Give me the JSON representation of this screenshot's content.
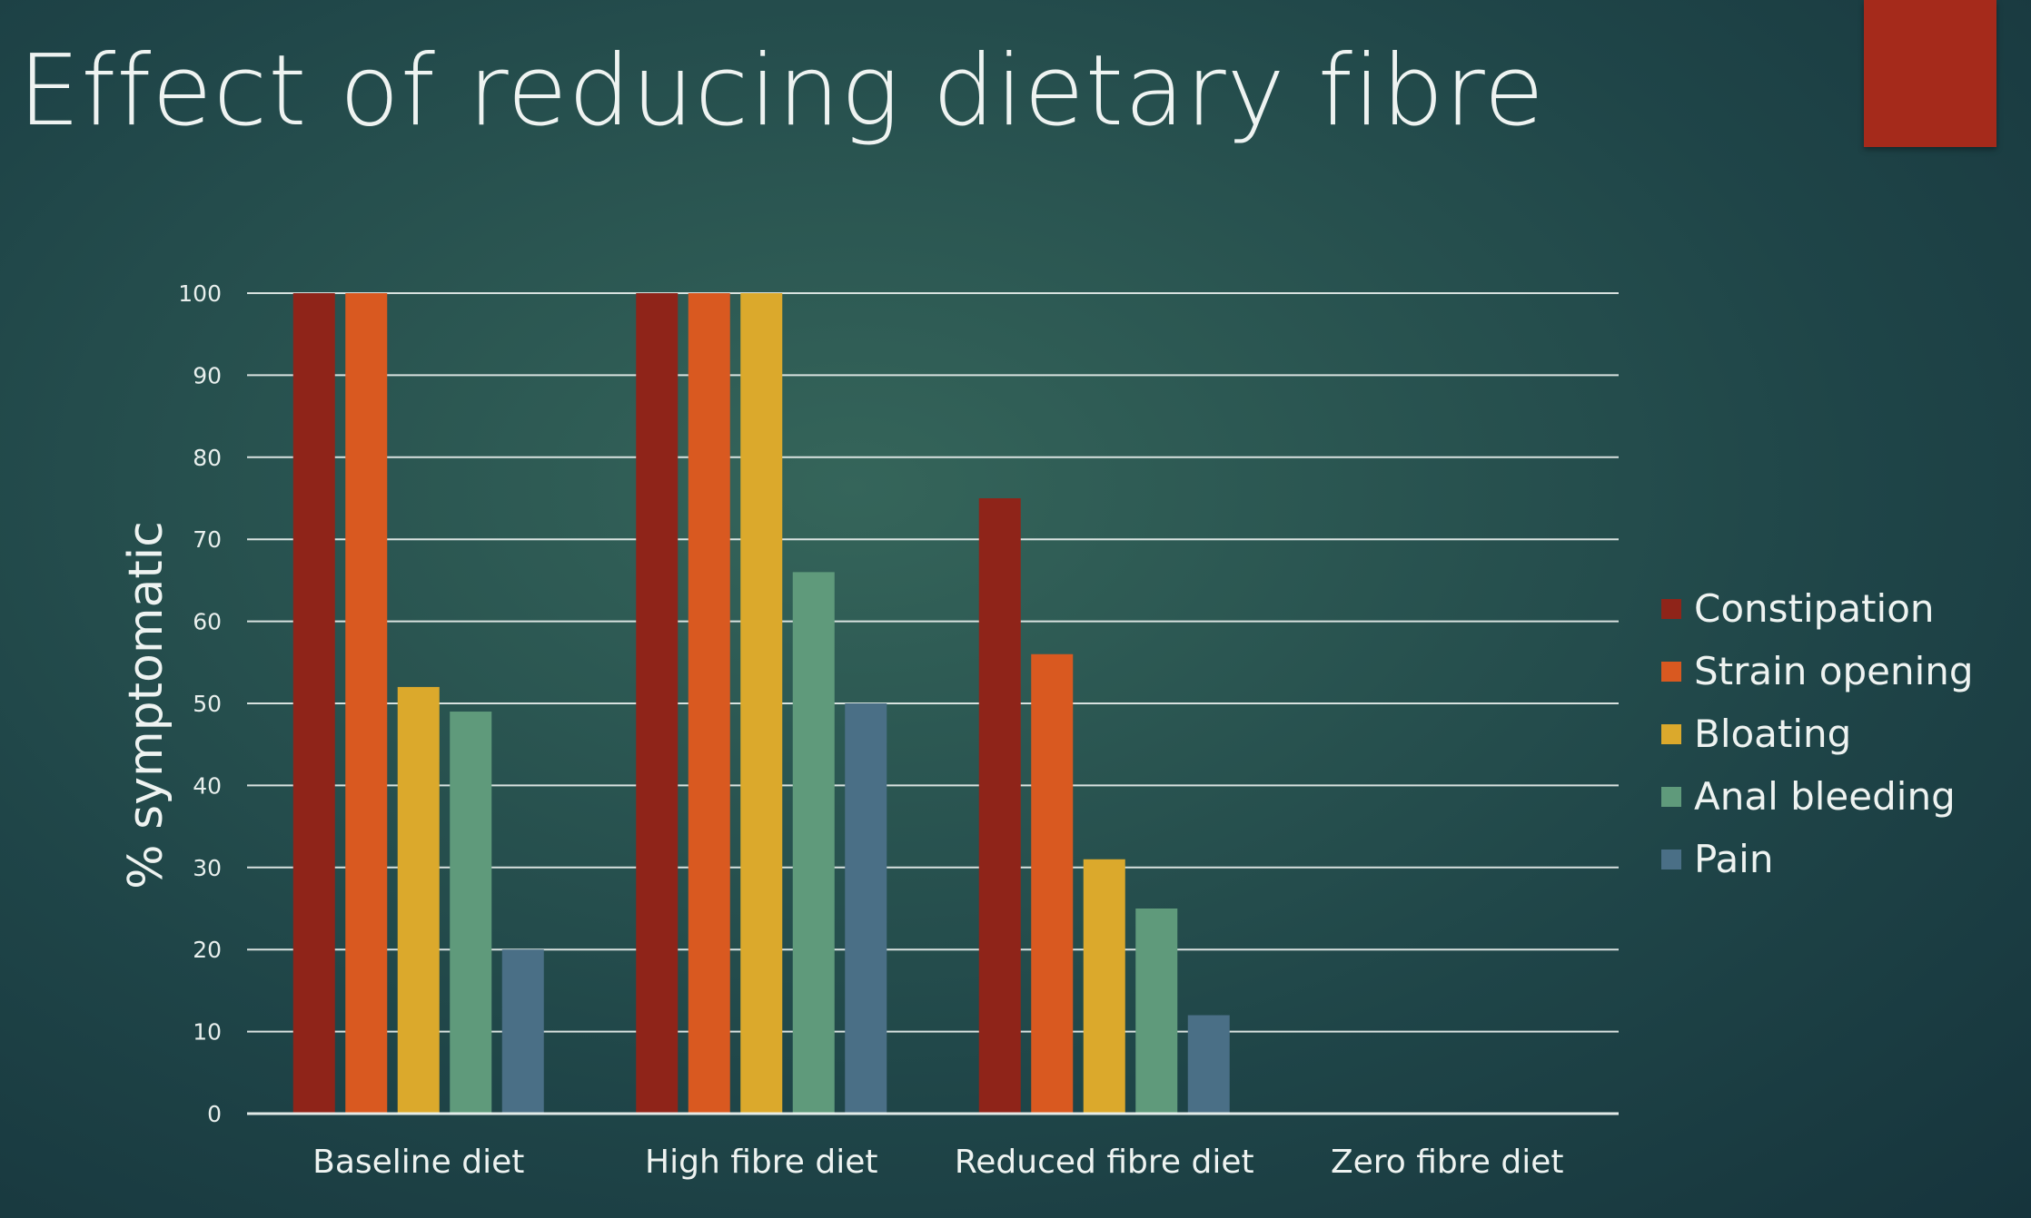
{
  "slide": {
    "title": "Effect of reducing dietary fibre",
    "accent_color": "#a52a1b",
    "background_colors": [
      "#35655a",
      "#16343c"
    ]
  },
  "chart_data": {
    "type": "bar",
    "title": "",
    "xlabel": "",
    "ylabel": "% symptomatic",
    "ylim": [
      0,
      100
    ],
    "yticks": [
      0,
      10,
      20,
      30,
      40,
      50,
      60,
      70,
      80,
      90,
      100
    ],
    "grid": true,
    "legend_position": "right",
    "categories": [
      "Baseline diet",
      "High fibre diet",
      "Reduced fibre diet",
      "Zero fibre diet"
    ],
    "series": [
      {
        "name": "Constipation",
        "color": "#8f2419",
        "values": [
          100,
          100,
          75,
          0
        ]
      },
      {
        "name": "Strain opening",
        "color": "#d95920",
        "values": [
          100,
          100,
          56,
          0
        ]
      },
      {
        "name": "Bloating",
        "color": "#dba92c",
        "values": [
          52,
          100,
          31,
          0
        ]
      },
      {
        "name": "Anal bleeding",
        "color": "#5f9a7b",
        "values": [
          49,
          66,
          25,
          0
        ]
      },
      {
        "name": "Pain",
        "color": "#4a6f86",
        "values": [
          20,
          50,
          12,
          0
        ]
      }
    ]
  }
}
